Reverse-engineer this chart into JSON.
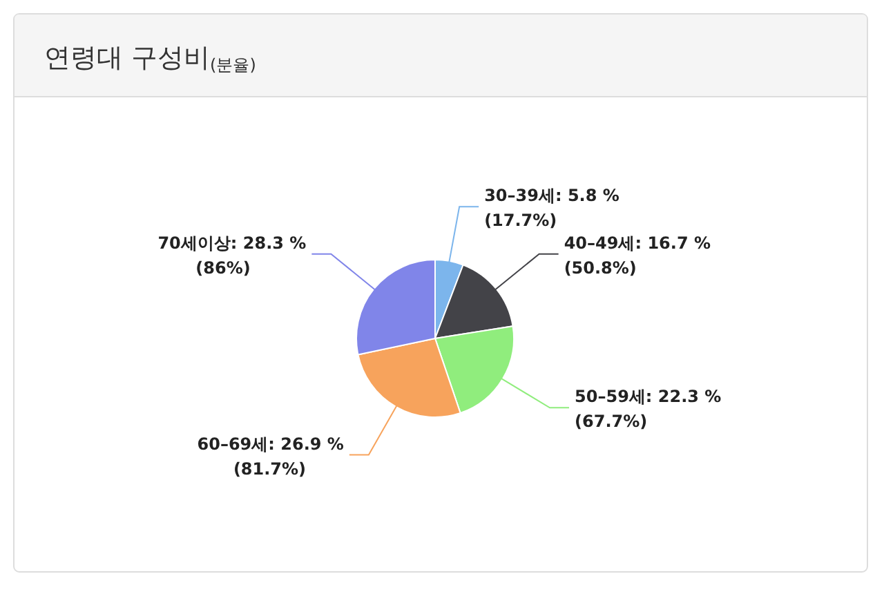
{
  "chart_data": {
    "type": "pie",
    "title": "연령대 구성비$_{(분율)}$",
    "categories": [
      "30–39세",
      "40–49세",
      "50–59세",
      "60–69세",
      "70세이상"
    ],
    "values": [
      5.8,
      16.7,
      22.3,
      26.9,
      28.3
    ],
    "colors": [
      "#7cb5ec",
      "#434348",
      "#90ed7d",
      "#f7a35c",
      "#8085e9"
    ],
    "value_labels": [
      "5.8 %\n(17.7%)",
      "16.7 %\n(50.8%)",
      "22.3 %\n(67.7%)",
      "26.9 %\n(81.7%)",
      "28.3 %\n(86%)"
    ]
  }
}
